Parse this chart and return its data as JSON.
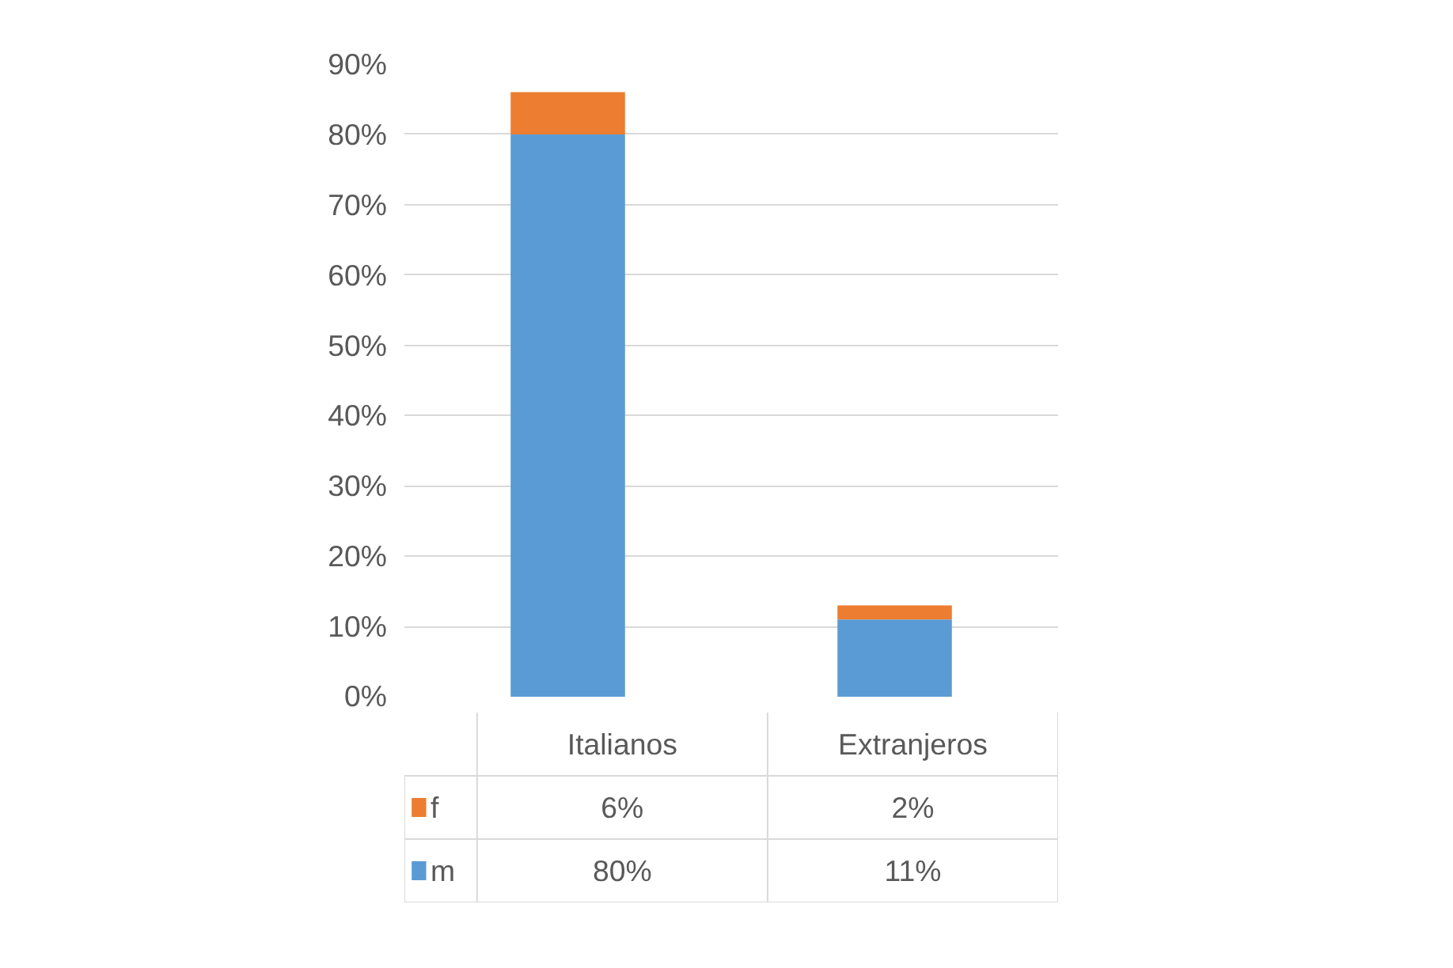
{
  "chart_data": {
    "type": "bar",
    "stacked": true,
    "categories": [
      "Italianos",
      "Extranjeros"
    ],
    "series": [
      {
        "name": "m",
        "color": "#5b9bd5",
        "values": [
          80,
          11
        ],
        "value_labels": [
          "80%",
          "11%"
        ]
      },
      {
        "name": "f",
        "color": "#ed7d31",
        "values": [
          6,
          2
        ],
        "value_labels": [
          "6%",
          "2%"
        ]
      }
    ],
    "ylim": [
      0,
      90
    ],
    "yticks": [
      {
        "value": 0,
        "label": "0%"
      },
      {
        "value": 10,
        "label": "10%"
      },
      {
        "value": 20,
        "label": "20%"
      },
      {
        "value": 30,
        "label": "30%"
      },
      {
        "value": 40,
        "label": "40%"
      },
      {
        "value": 50,
        "label": "50%"
      },
      {
        "value": 60,
        "label": "60%"
      },
      {
        "value": 70,
        "label": "70%"
      },
      {
        "value": 80,
        "label": "80%"
      },
      {
        "value": 90,
        "label": "90%"
      }
    ],
    "grid": "y",
    "legend": "bottom"
  }
}
